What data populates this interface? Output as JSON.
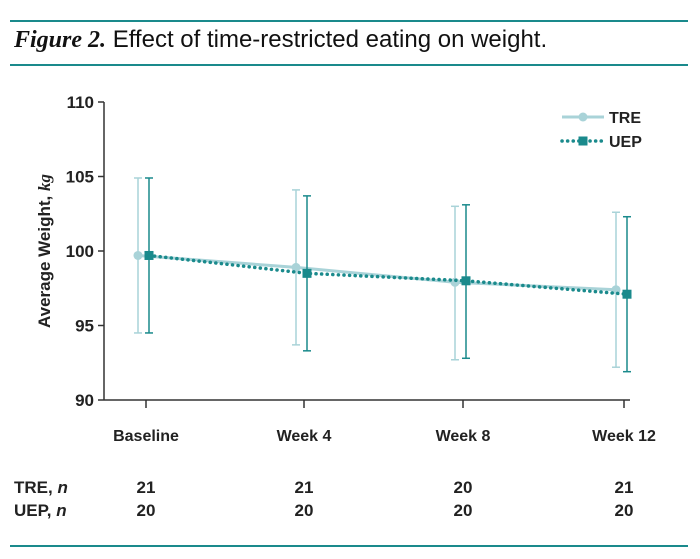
{
  "figure": {
    "label": "Figure 2.",
    "title": "Effect of time-restricted eating on weight."
  },
  "chart_data": {
    "type": "line",
    "categories": [
      "Baseline",
      "Week 4",
      "Week 8",
      "Week 12"
    ],
    "ylabel_main": "Average Weight,",
    "ylabel_unit": "kg",
    "ylim": [
      90,
      110
    ],
    "yticks": [
      90,
      95,
      100,
      105,
      110
    ],
    "legend_position": "top-right",
    "grid": false,
    "series": [
      {
        "name": "TRE",
        "values": [
          99.7,
          98.9,
          97.9,
          97.4
        ],
        "err_low": [
          94.5,
          93.7,
          92.7,
          92.2
        ],
        "err_high": [
          104.9,
          104.1,
          103.0,
          102.6
        ],
        "color": "#a9d3d8",
        "marker": "circle",
        "line_style": "solid"
      },
      {
        "name": "UEP",
        "values": [
          99.7,
          98.5,
          98.0,
          97.1
        ],
        "err_low": [
          94.5,
          93.3,
          92.8,
          91.9
        ],
        "err_high": [
          104.9,
          103.7,
          103.1,
          102.3
        ],
        "color": "#1a8a8c",
        "marker": "square",
        "line_style": "dotted"
      }
    ]
  },
  "n_table": {
    "rows": [
      {
        "label": "TRE,",
        "unit": "n",
        "values": [
          "21",
          "21",
          "20",
          "21"
        ]
      },
      {
        "label": "UEP,",
        "unit": "n",
        "values": [
          "20",
          "20",
          "20",
          "20"
        ]
      }
    ]
  }
}
